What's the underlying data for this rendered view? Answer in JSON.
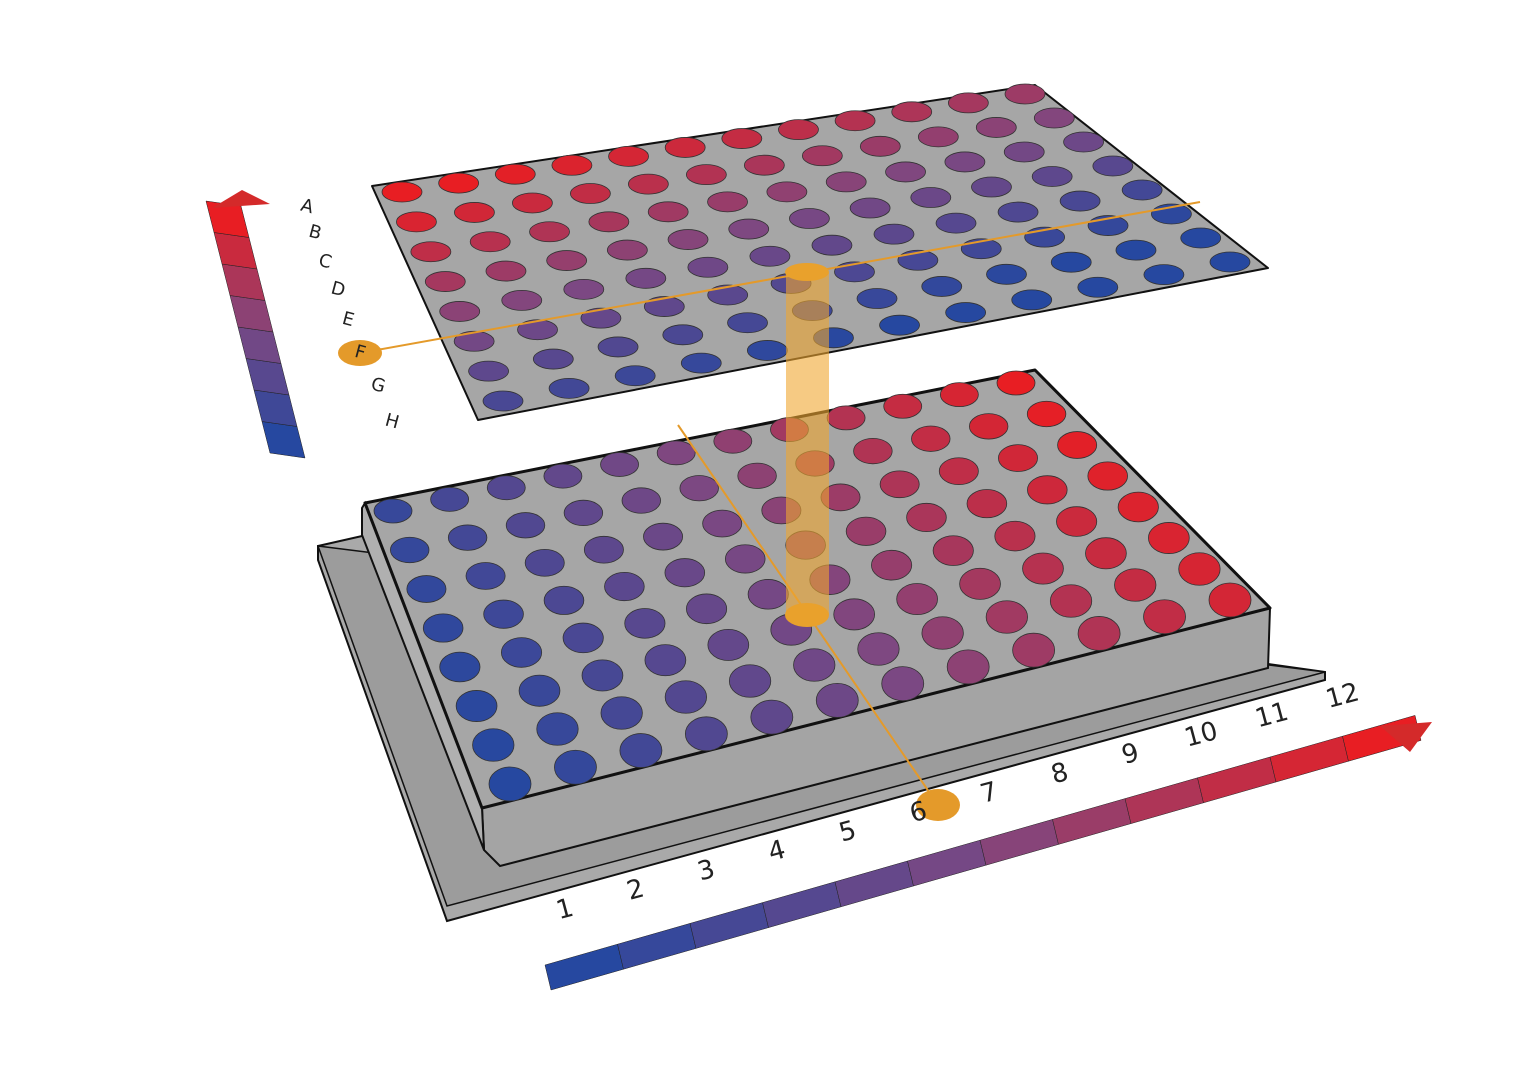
{
  "row_labels": [
    "A",
    "B",
    "C",
    "D",
    "E",
    "F",
    "G",
    "H"
  ],
  "column_labels": [
    "1",
    "2",
    "3",
    "4",
    "5",
    "6",
    "7",
    "8",
    "9",
    "10",
    "11",
    "12"
  ]
}
